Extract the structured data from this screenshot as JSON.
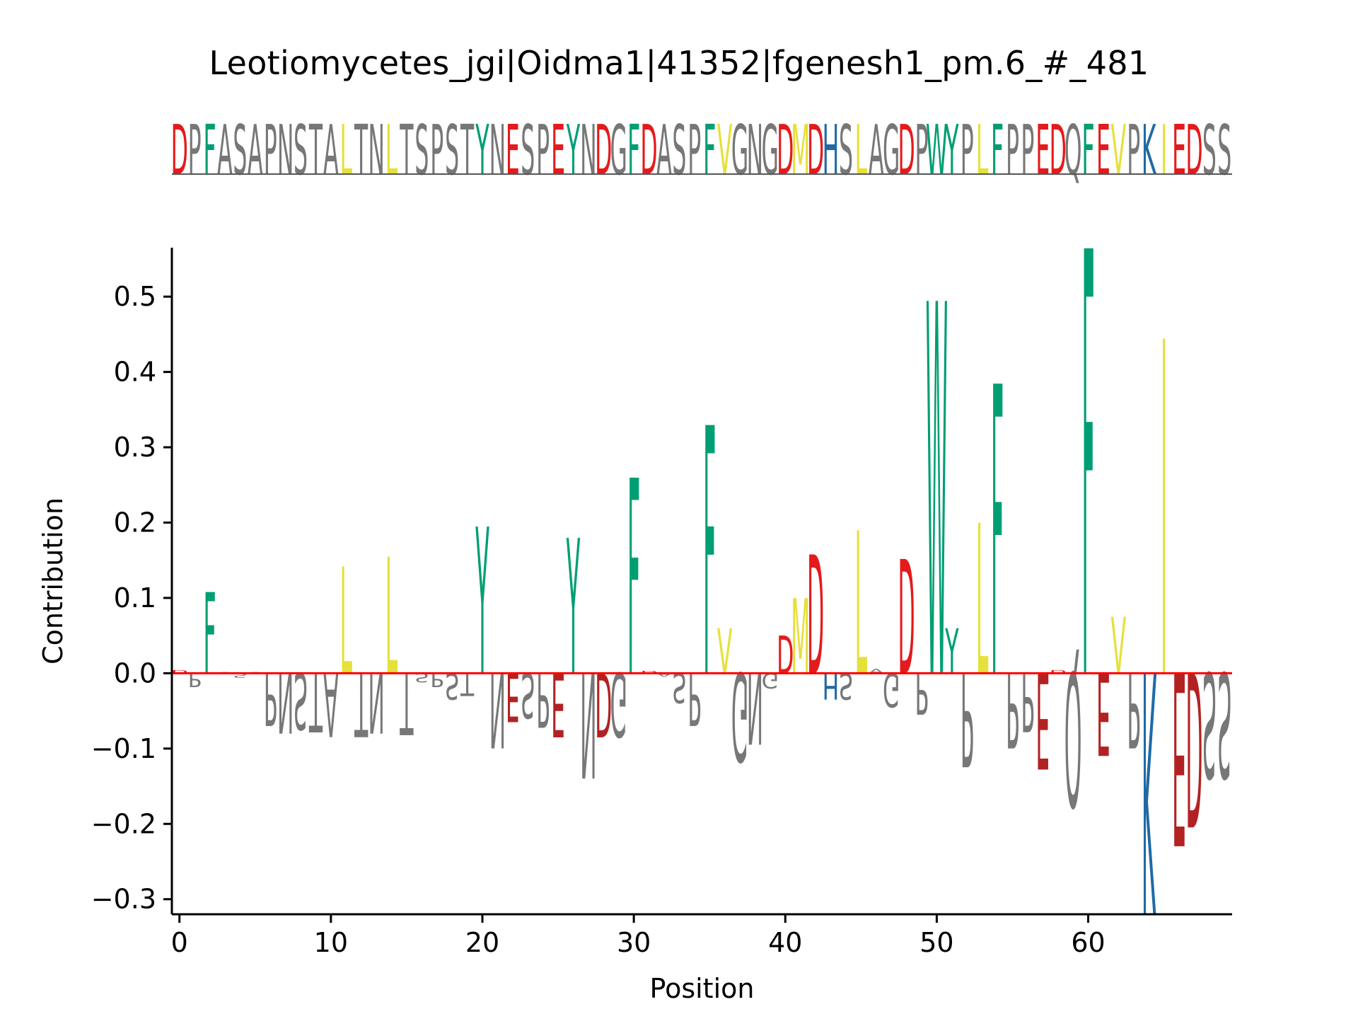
{
  "title": "Leotiomycetes_jgi|Oidma1|41352|fgenesh1_pm.6_#_481",
  "colors": {
    "acidic": "#e41a1c",
    "acidic_dark": "#b22222",
    "aromatic": "#009e73",
    "hydrophobic": "#e6e03a",
    "basic": "#1f6aa5",
    "other": "#777777",
    "zero_line": "#ff0000"
  },
  "chart_data": {
    "type": "sequence-logo",
    "sequence": "DPFASAPNSTALTNLTSPSTYNESPEYNDGFDASPFVGNGDMDHSLAGDPWYPLFPPEDQFEVPKIEDSS",
    "xlabel": "Position",
    "ylabel": "Contribution",
    "xlim": [
      -0.5,
      69.5
    ],
    "ylim": [
      -0.32,
      0.565
    ],
    "xticks": [
      0,
      10,
      20,
      30,
      40,
      50,
      60
    ],
    "yticks": [
      -0.3,
      -0.2,
      -0.1,
      0.0,
      0.1,
      0.2,
      0.3,
      0.4,
      0.5
    ],
    "ytick_labels": [
      "−0.3",
      "−0.2",
      "−0.1",
      "0.0",
      "0.1",
      "0.2",
      "0.3",
      "0.4",
      "0.5"
    ],
    "contributions": [
      0.004,
      -0.018,
      0.108,
      0.002,
      -0.006,
      0.002,
      -0.07,
      -0.08,
      -0.075,
      -0.078,
      -0.085,
      0.142,
      -0.085,
      -0.08,
      0.155,
      -0.082,
      -0.012,
      -0.018,
      -0.035,
      -0.03,
      0.195,
      -0.1,
      -0.065,
      -0.06,
      -0.072,
      -0.085,
      0.18,
      -0.14,
      -0.085,
      -0.085,
      0.26,
      0.003,
      -0.005,
      -0.04,
      -0.07,
      0.33,
      0.06,
      -0.118,
      -0.095,
      -0.02,
      0.05,
      0.1,
      0.158,
      -0.035,
      -0.035,
      0.19,
      0.006,
      -0.045,
      0.152,
      -0.055,
      0.495,
      0.06,
      -0.125,
      0.2,
      0.385,
      -0.1,
      -0.078,
      -0.128,
      0.004,
      -0.178,
      0.565,
      -0.11,
      0.075,
      -0.1,
      -0.32,
      0.445,
      -0.23,
      -0.205,
      -0.14,
      -0.14
    ]
  }
}
